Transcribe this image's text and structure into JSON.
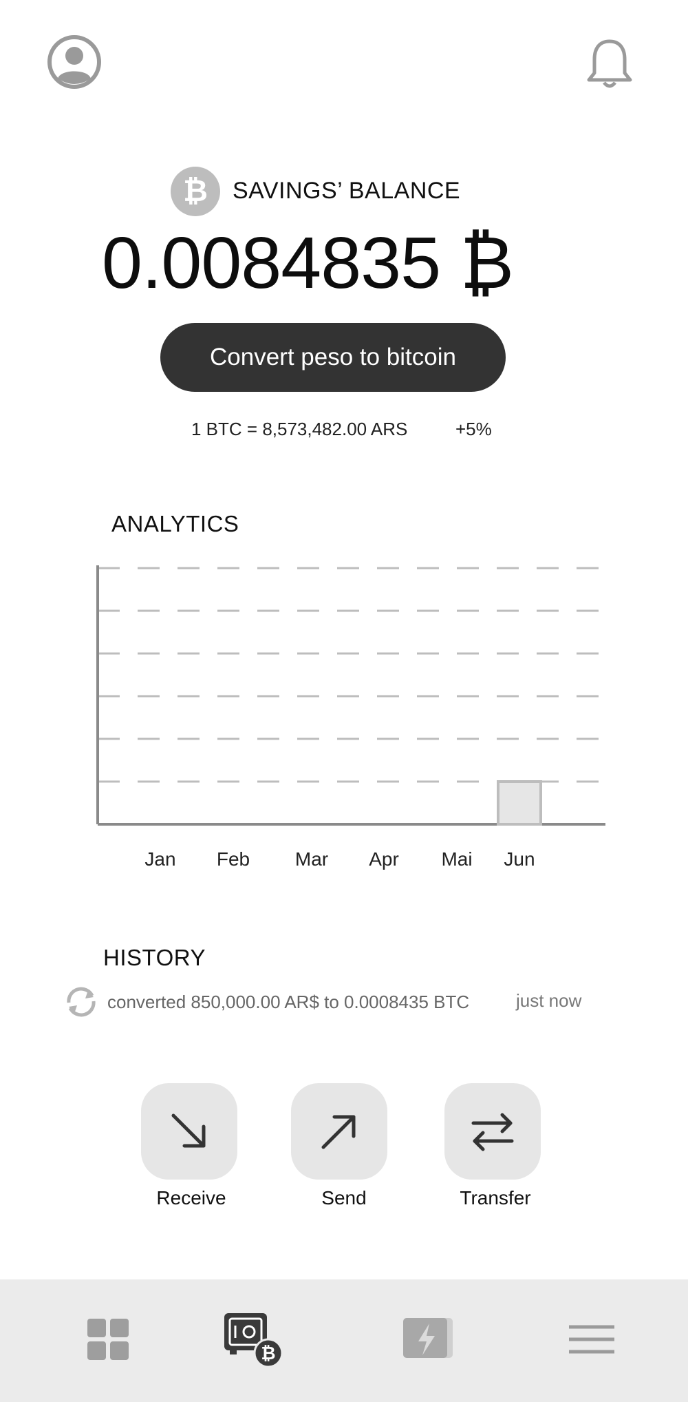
{
  "header": {
    "profile_icon": "user-circle-icon",
    "notification_icon": "bell-icon"
  },
  "balance": {
    "currency_icon": "bitcoin-icon",
    "currency_symbol": "₿",
    "label": "SAVINGS’ BALANCE",
    "amount": "0.0084835 ₿",
    "convert_button_label": "Convert peso to bitcoin",
    "rate": "1 BTC = 8,573,482.00 ARS",
    "rate_change": "+5%"
  },
  "analytics": {
    "title": "ANALYTICS"
  },
  "chart_data": {
    "type": "bar",
    "title": "ANALYTICS",
    "categories": [
      "Jan",
      "Feb",
      "Mar",
      "Apr",
      "Mai",
      "Jun"
    ],
    "values": [
      0,
      0,
      0,
      0,
      0,
      1
    ],
    "ylim": [
      0,
      6
    ],
    "grid": true,
    "xlabel": "",
    "ylabel": ""
  },
  "history": {
    "title": "HISTORY",
    "items": [
      {
        "icon": "refresh-icon",
        "text": "converted 850,000.00 AR$ to 0.0008435 BTC",
        "time": "just now"
      }
    ]
  },
  "actions": [
    {
      "label": "Receive",
      "icon": "arrow-down-right-icon"
    },
    {
      "label": "Send",
      "icon": "arrow-up-right-icon"
    },
    {
      "label": "Transfer",
      "icon": "swap-arrows-icon"
    }
  ],
  "bottom_nav": [
    {
      "icon": "dashboard-grid-icon"
    },
    {
      "icon": "bitcoin-safe-icon",
      "badge": "₿"
    },
    {
      "icon": "lightning-icon"
    },
    {
      "icon": "menu-icon"
    }
  ],
  "colors": {
    "button_dark": "#333333",
    "tile_gray": "#e6e6e6",
    "nav_background": "#ebebeb",
    "grid_gray": "#bdbdbd",
    "axis_gray": "#8a8a8a"
  }
}
